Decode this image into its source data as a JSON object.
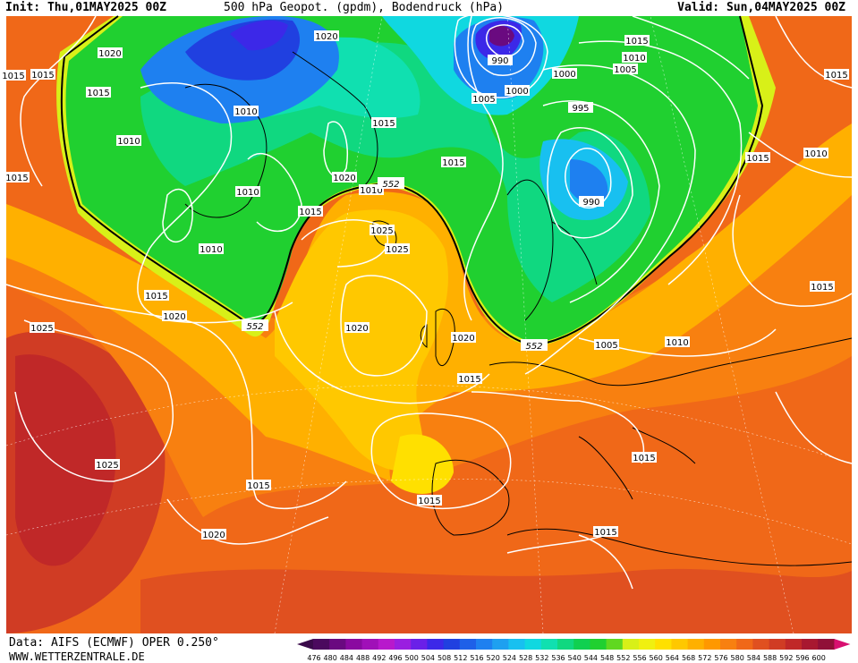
{
  "header": {
    "init": "Init: Thu,01MAY2025 00Z",
    "title": "500 hPa Geopot. (gpdm), Bodendruck (hPa)",
    "valid": "Valid: Sun,04MAY2025 00Z"
  },
  "footer": {
    "source": "Data: AIFS (ECMWF) OPER 0.250°",
    "site": "WWW.WETTERZENTRALE.DE"
  },
  "colorbar": {
    "ticks": [
      "476",
      "480",
      "484",
      "488",
      "492",
      "496",
      "500",
      "504",
      "508",
      "512",
      "516",
      "520",
      "524",
      "528",
      "532",
      "536",
      "540",
      "544",
      "548",
      "552",
      "556",
      "560",
      "564",
      "568",
      "572",
      "576",
      "580",
      "584",
      "588",
      "592",
      "596",
      "600"
    ],
    "colors": [
      "#4b0a5e",
      "#6a0a80",
      "#8a0aa0",
      "#a010b8",
      "#b818cc",
      "#9a1ee0",
      "#6a20e8",
      "#3c28e8",
      "#2040e0",
      "#1e60e8",
      "#1e80f0",
      "#1ea0f0",
      "#18c0f0",
      "#10d8e0",
      "#10e0b0",
      "#10d880",
      "#10d050",
      "#20d030",
      "#60d820",
      "#d8f018",
      "#f0f010",
      "#ffe000",
      "#ffc800",
      "#ffb000",
      "#ff9800",
      "#f88010",
      "#f06818",
      "#e05020",
      "#d03c24",
      "#c02828",
      "#a81830",
      "#901038"
    ]
  },
  "labels": {
    "isobars": [
      "1020",
      "1020",
      "1015",
      "1015",
      "1010",
      "1010",
      "1015",
      "1015",
      "1010",
      "1020",
      "1010",
      "1015",
      "1010",
      "1015",
      "1020",
      "1025",
      "1025",
      "1020",
      "990",
      "1005",
      "1000",
      "1000",
      "995",
      "1015",
      "1010",
      "1005",
      "1015",
      "990",
      "1010",
      "1015",
      "1015",
      "1005",
      "1010",
      "1020",
      "1015",
      "1015",
      "1025",
      "1025",
      "1015",
      "1020",
      "1015",
      "1015",
      "1015",
      "1015"
    ],
    "contour_552": "552"
  }
}
